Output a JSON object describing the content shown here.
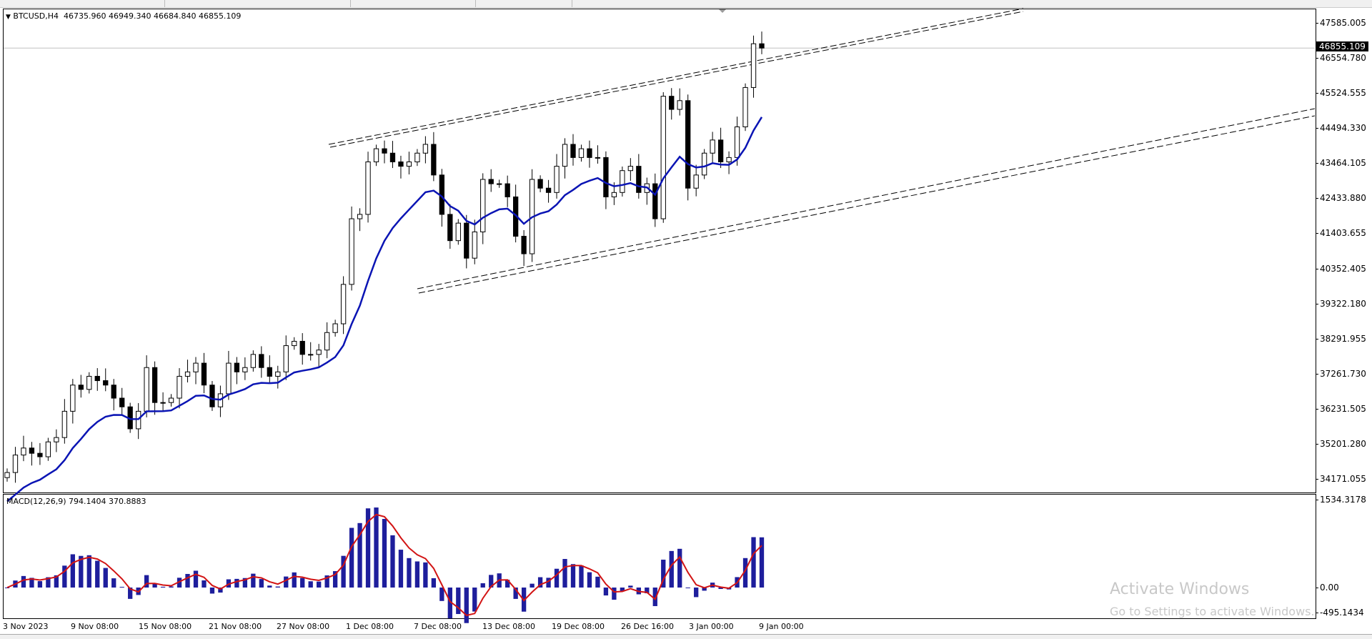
{
  "chart_header": {
    "symbol_timeframe": "BTCUSD,H4",
    "ohlc": "46735.960 46949.340 46684.840 46855.109"
  },
  "macd_header": {
    "label": "MACD(12,26,9) 794.1404 370.8883"
  },
  "current_price": "46855.109",
  "watermark": {
    "line1": "Activate Windows",
    "line2": "Go to Settings to activate Windows."
  },
  "colors": {
    "moving_average": "#0a14b4",
    "macd_histogram": "#1e1e9c",
    "macd_signal": "#d21414",
    "candle": "#000000",
    "price_line": "#c0c0c0"
  },
  "chart_data": [
    {
      "type": "candlestick",
      "symbol": "BTCUSD",
      "timeframe": "H4",
      "y_ticks": [
        "47585.005",
        "46554.780",
        "45524.555",
        "44494.330",
        "43464.105",
        "42433.880",
        "41403.655",
        "40352.405",
        "39322.180",
        "38291.955",
        "37261.730",
        "36231.505",
        "35201.280",
        "34171.055"
      ],
      "ylim": [
        34000,
        48300
      ],
      "x_ticks": [
        "3 Nov 2023",
        "9 Nov 08:00",
        "15 Nov 08:00",
        "21 Nov 08:00",
        "27 Nov 08:00",
        "1 Dec 08:00",
        "7 Dec 08:00",
        "13 Dec 08:00",
        "19 Dec 08:00",
        "26 Dec 16:00",
        "3 Jan 00:00",
        "9 Jan 00:00"
      ],
      "closes": [
        34380,
        34894,
        35100,
        34945,
        34843,
        35280,
        35408,
        36180,
        36950,
        36823,
        37208,
        37080,
        36950,
        36566,
        36310,
        35665,
        36180,
        37465,
        36437,
        36437,
        36566,
        37208,
        37337,
        37594,
        36950,
        36310,
        36694,
        37594,
        37337,
        37465,
        37851,
        37465,
        37208,
        37337,
        38109,
        38237,
        37851,
        37851,
        37980,
        38494,
        38751,
        39909,
        41838,
        41967,
        43510,
        43896,
        43767,
        43510,
        43381,
        43510,
        43767,
        44025,
        43124,
        41967,
        41195,
        41710,
        40680,
        41452,
        42995,
        42867,
        42867,
        42481,
        41324,
        40809,
        42995,
        42738,
        42610,
        43381,
        44025,
        43638,
        43896,
        43638,
        43638,
        42481,
        42610,
        43253,
        43381,
        42610,
        42867,
        41838,
        45439,
        45053,
        45310,
        42738,
        43124,
        43767,
        44153,
        43510,
        43638,
        44539,
        45696,
        46982,
        46855
      ],
      "overlays": [
        "moving average (blue)",
        "trend channel lines (dashed)"
      ]
    },
    {
      "type": "bar+line",
      "indicator": "MACD(12,26,9)",
      "macd_value": 794.1404,
      "signal_value": 370.8883,
      "y_ticks": [
        "1534.3178",
        "0.00",
        "-495.1434"
      ]
    }
  ]
}
